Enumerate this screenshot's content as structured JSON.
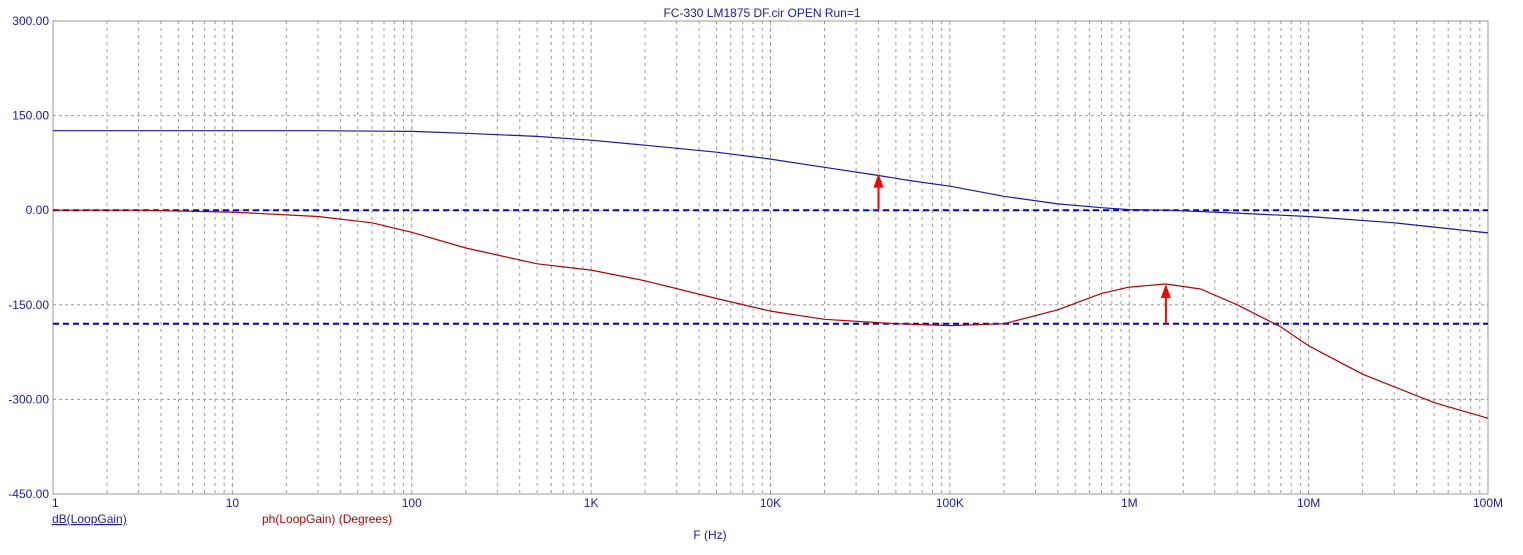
{
  "chart_data": {
    "type": "line",
    "title": "FC-330 LM1875 DF.cir OPEN Run=1",
    "xlabel": "F (Hz)",
    "x_scale": "log",
    "xlim": [
      1,
      100000000
    ],
    "ylim": [
      -450,
      300
    ],
    "grid": true,
    "x_tick_labels": [
      "1",
      "10",
      "100",
      "1K",
      "10K",
      "100K",
      "1M",
      "10M",
      "100M"
    ],
    "y_tick_labels": [
      "300.00",
      "150.00",
      "0.00",
      "-150.00",
      "-300.00",
      "-450.00"
    ],
    "y_ticks": [
      300,
      150,
      0,
      -150,
      -300,
      -450
    ],
    "colors": {
      "magnitude": "#1a1aa0",
      "phase": "#b00000",
      "reference": "#0000cc",
      "marker": "#ff0000",
      "grid": "#9a9a9a",
      "axis": "#9a9a9a"
    },
    "series": [
      {
        "name": "dB(LoopGain)",
        "color": "#1a1aa0",
        "x": [
          1,
          10,
          30,
          100,
          200,
          500,
          1000,
          2000,
          5000,
          10000,
          20000,
          40000,
          60000,
          100000,
          200000,
          400000,
          700000,
          1000000,
          1600000,
          3000000,
          10000000,
          30000000,
          100000000
        ],
        "y": [
          126,
          126,
          126,
          125,
          122,
          117,
          111,
          103,
          92,
          81,
          68,
          55,
          47,
          38,
          22,
          10,
          4,
          1,
          0,
          -3,
          -10,
          -20,
          -36
        ]
      },
      {
        "name": "ph(LoopGain) (Degrees)",
        "color": "#b00000",
        "x": [
          1,
          3,
          10,
          30,
          60,
          100,
          200,
          500,
          1000,
          2000,
          5000,
          10000,
          20000,
          50000,
          100000,
          200000,
          400000,
          700000,
          1000000,
          1600000,
          2500000,
          4000000,
          7000000,
          10000000,
          20000000,
          50000000,
          100000000
        ],
        "y": [
          0,
          0,
          -3,
          -10,
          -20,
          -35,
          -60,
          -85,
          -95,
          -112,
          -140,
          -160,
          -173,
          -180,
          -183,
          -180,
          -158,
          -132,
          -122,
          -117,
          -125,
          -150,
          -185,
          -215,
          -260,
          -305,
          -330
        ]
      }
    ],
    "reference_lines": [
      {
        "label": "0 dB",
        "y": 0
      },
      {
        "label": "-180 degrees",
        "y": -180
      }
    ],
    "markers": [
      {
        "x": 40000,
        "y_from": 0,
        "y_to": 58
      },
      {
        "x": 1600000,
        "y_from": -180,
        "y_to": -117
      }
    ]
  }
}
